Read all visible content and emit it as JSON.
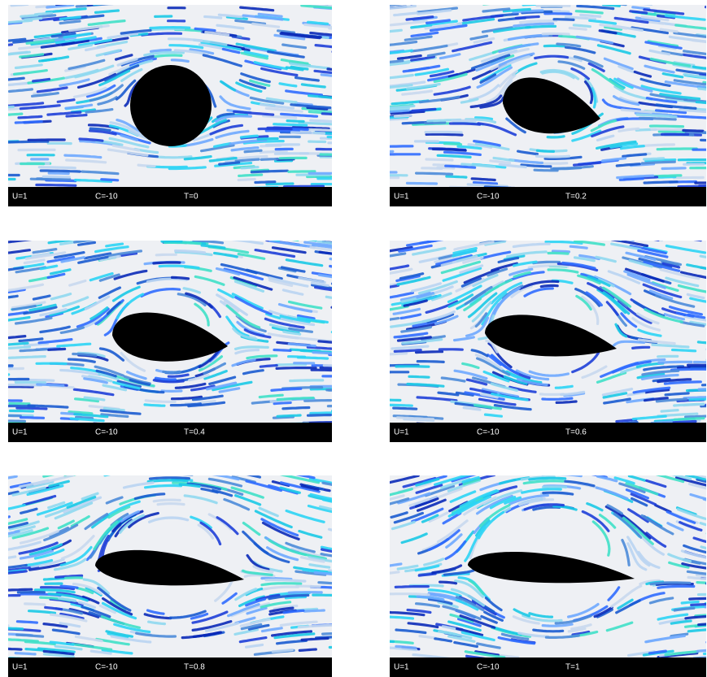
{
  "panels": [
    {
      "u": "U=1",
      "c": "C=-10",
      "t": "T=0"
    },
    {
      "u": "U=1",
      "c": "C=-10",
      "t": "T=0.2"
    },
    {
      "u": "U=1",
      "c": "C=-10",
      "t": "T=0.4"
    },
    {
      "u": "U=1",
      "c": "C=-10",
      "t": "T=0.6"
    },
    {
      "u": "U=1",
      "c": "C=-10",
      "t": "T=0.8"
    },
    {
      "u": "U=1",
      "c": "C=-10",
      "t": "T=1"
    }
  ]
}
